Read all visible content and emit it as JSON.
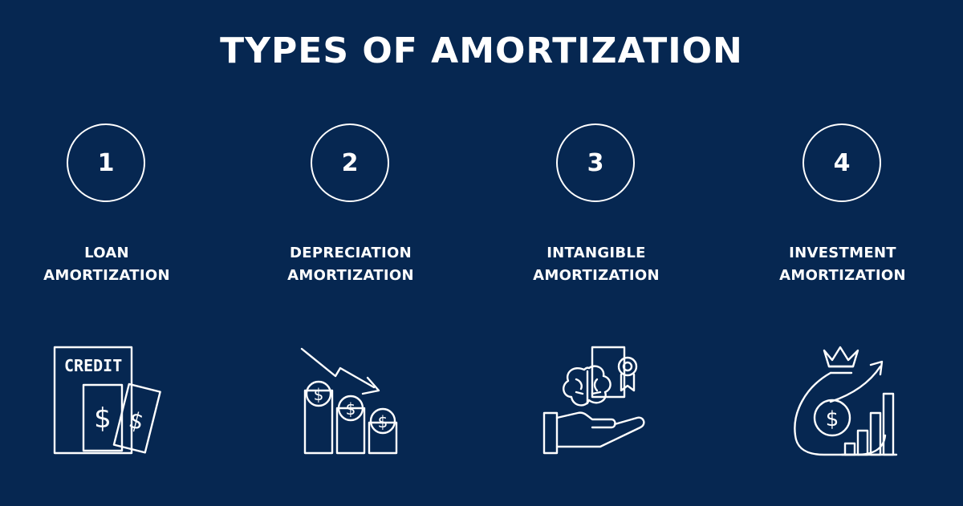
{
  "title": "TYPES OF AMORTIZATION",
  "items": [
    {
      "number": "1",
      "line1": "LOAN",
      "line2": "AMORTIZATION",
      "icon": "credit-card-icon",
      "icon_text": "CREDIT"
    },
    {
      "number": "2",
      "line1": "DEPRECIATION",
      "line2": "AMORTIZATION",
      "icon": "declining-coins-chart-icon"
    },
    {
      "number": "3",
      "line1": "INTANGIBLE",
      "line2": "AMORTIZATION",
      "icon": "hand-holding-brain-certificate-icon"
    },
    {
      "number": "4",
      "line1": "INVESTMENT",
      "line2": "AMORTIZATION",
      "icon": "money-bag-growth-chart-icon"
    }
  ],
  "colors": {
    "background": "#062751",
    "foreground": "#ffffff"
  }
}
